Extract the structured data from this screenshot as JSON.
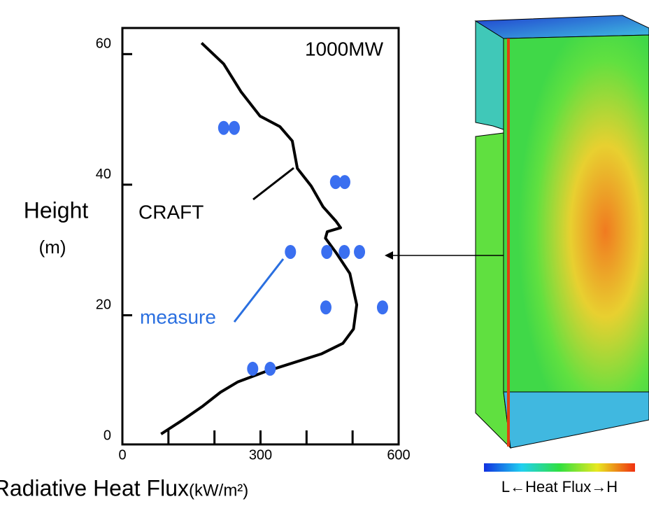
{
  "chart_data": {
    "type": "line_scatter",
    "annotation_title": "1000MW",
    "ylabel": "Height",
    "ylabel_unit": "(m)",
    "xlabel": "Radiative Heat Flux",
    "xlabel_unit": "(kW/m²)",
    "colorbar_label": "L←Heat Flux→H",
    "xlim": [
      0,
      600
    ],
    "ylim": [
      0,
      64
    ],
    "xticks": [
      0,
      300,
      600
    ],
    "xtick_marks": [
      100,
      200,
      300,
      400,
      500
    ],
    "yticks": [
      0,
      20,
      40,
      60
    ],
    "ytick_marks": [
      20,
      40,
      60
    ],
    "series": [
      {
        "name": "CRAFT",
        "kind": "line",
        "color": "#000000",
        "x": [
          172,
          220,
          258,
          299,
          342,
          369,
          380,
          410,
          436,
          464,
          474,
          445,
          441,
          464,
          494,
          509,
          502,
          479,
          433,
          312,
          251,
          213,
          175,
          132,
          84
        ],
        "values": [
          61.7,
          58.5,
          54.2,
          50.5,
          48.9,
          46.7,
          42.5,
          39.8,
          36.6,
          34.4,
          33.4,
          32.8,
          31.8,
          29.6,
          26.4,
          21.6,
          17.9,
          15.7,
          14.1,
          11.4,
          9.8,
          8.2,
          6.1,
          4.0,
          1.8
        ]
      },
      {
        "name": "measure",
        "kind": "scatter",
        "color": "#3a6ff0",
        "x": [
          220,
          243,
          463,
          483,
          365,
          444,
          482,
          515,
          442,
          565,
          283,
          321
        ],
        "values": [
          48.7,
          48.7,
          40.4,
          40.4,
          29.7,
          29.7,
          29.7,
          29.7,
          21.2,
          21.2,
          11.8,
          11.8
        ]
      }
    ]
  }
}
